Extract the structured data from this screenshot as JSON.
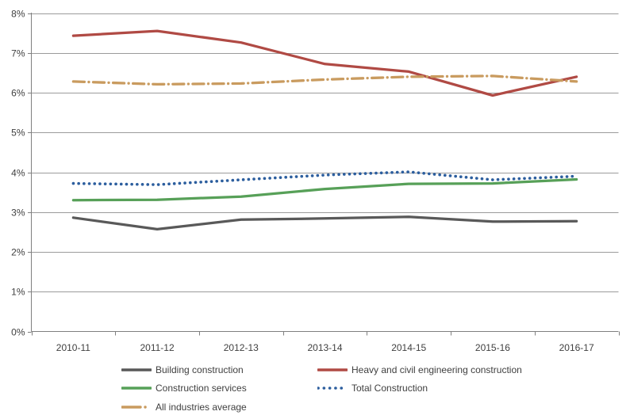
{
  "chart_data": {
    "type": "line",
    "title": "",
    "xlabel": "",
    "ylabel": "",
    "categories": [
      "2010-11",
      "2011-12",
      "2012-13",
      "2013-14",
      "2014-15",
      "2015-16",
      "2016-17"
    ],
    "series": [
      {
        "name": "Building construction",
        "color": "#595959",
        "dash": "solid",
        "values": [
          2.86,
          2.57,
          2.81,
          2.84,
          2.88,
          2.76,
          2.77
        ]
      },
      {
        "name": "Heavy and civil engineering construction",
        "color": "#B04A44",
        "dash": "solid",
        "values": [
          7.43,
          7.55,
          7.26,
          6.72,
          6.53,
          5.93,
          6.4
        ]
      },
      {
        "name": "Construction services",
        "color": "#57A058",
        "dash": "solid",
        "values": [
          3.3,
          3.31,
          3.39,
          3.58,
          3.71,
          3.72,
          3.82
        ]
      },
      {
        "name": "Total Construction",
        "color": "#2C5E9E",
        "dash": "dotted",
        "values": [
          3.72,
          3.69,
          3.81,
          3.93,
          4.01,
          3.81,
          3.9
        ]
      },
      {
        "name": "All industries average",
        "color": "#C99B5F",
        "dash": "dashdot",
        "values": [
          6.28,
          6.21,
          6.23,
          6.33,
          6.4,
          6.42,
          6.28
        ]
      }
    ],
    "ylim": [
      0,
      8
    ],
    "ytick_step": 1,
    "yticks": [
      "0%",
      "1%",
      "2%",
      "3%",
      "4%",
      "5%",
      "6%",
      "7%",
      "8%"
    ],
    "grid": true,
    "legend_position": "bottom"
  }
}
